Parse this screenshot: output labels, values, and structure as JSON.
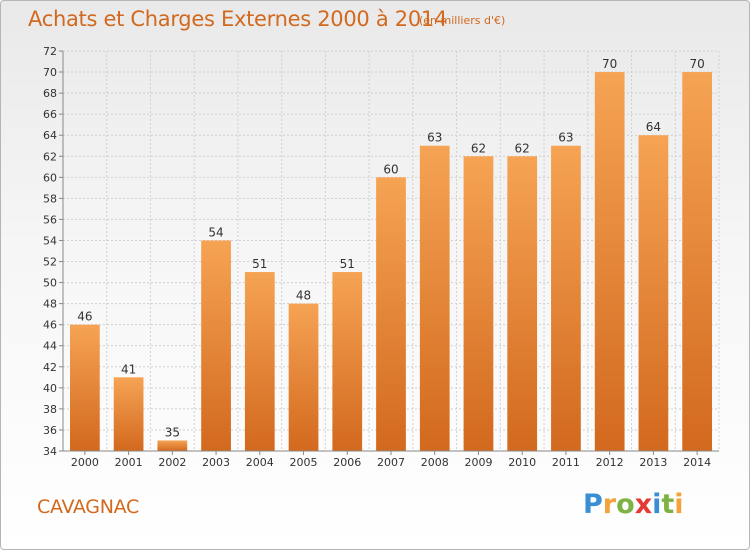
{
  "header": {
    "title": "Achats et Charges Externes 2000 à 2014",
    "subtitle": "(en milliers d'€)"
  },
  "footer": {
    "commune": "CAVAGNAC",
    "logo_letters": [
      {
        "ch": "P",
        "color": "#3a8fd4"
      },
      {
        "ch": "r",
        "color": "#f2a33a"
      },
      {
        "ch": "o",
        "color": "#7cb342"
      },
      {
        "ch": "x",
        "color": "#e53935"
      },
      {
        "ch": "i",
        "color": "#3a8fd4"
      },
      {
        "ch": "t",
        "color": "#7cb342"
      },
      {
        "ch": "i",
        "color": "#f2a33a"
      }
    ]
  },
  "chart_data": {
    "type": "bar",
    "title": "Achats et Charges Externes 2000 à 2014",
    "subtitle": "(en milliers d'€)",
    "categories": [
      "2000",
      "2001",
      "2002",
      "2003",
      "2004",
      "2005",
      "2006",
      "2007",
      "2008",
      "2009",
      "2010",
      "2011",
      "2012",
      "2013",
      "2014"
    ],
    "values": [
      46,
      41,
      35,
      54,
      51,
      48,
      51,
      60,
      63,
      62,
      62,
      63,
      70,
      64,
      70
    ],
    "ylim": [
      34,
      72
    ],
    "yticks": [
      34,
      36,
      38,
      40,
      42,
      44,
      46,
      48,
      50,
      52,
      54,
      56,
      58,
      60,
      62,
      64,
      66,
      68,
      70,
      72
    ],
    "grid": true,
    "bar_color_top": "#f6a354",
    "bar_color_bottom": "#d2691e"
  }
}
